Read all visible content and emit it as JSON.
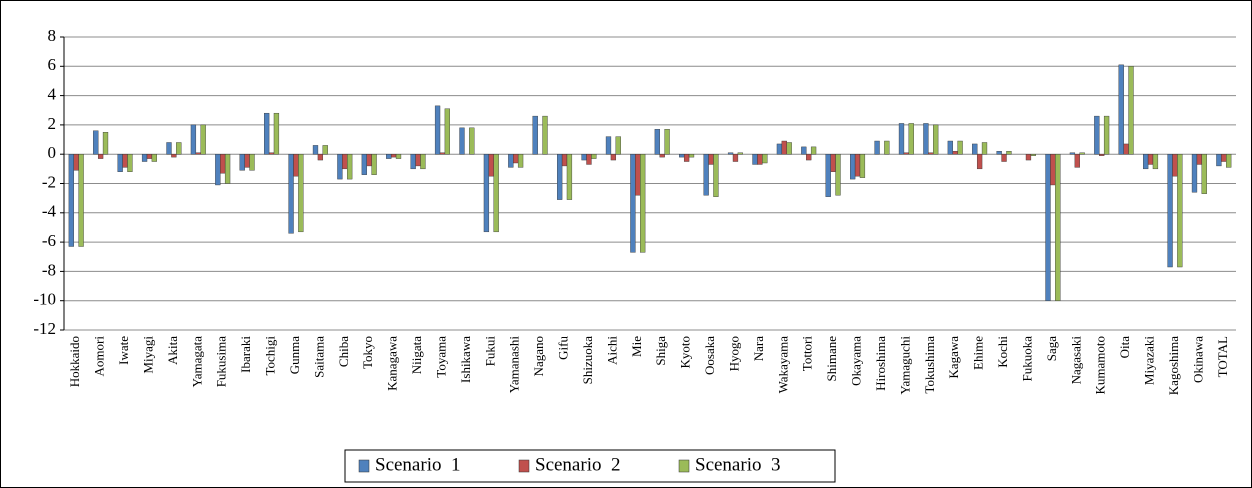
{
  "chart_data": {
    "type": "bar",
    "categories": [
      "Hokkaido",
      "Aomori",
      "Iwate",
      "Miyagi",
      "Akita",
      "Yamagata",
      "Fukusima",
      "Ibaraki",
      "Tochigi",
      "Gunma",
      "Saitama",
      "Chiba",
      "Tokyo",
      "Kanagawa",
      "Niigata",
      "Toyama",
      "Ishikawa",
      "Fukui",
      "Yamanashi",
      "Nagano",
      "Gifu",
      "Shizuoka",
      "Aichi",
      "Mie",
      "Shiga",
      "Kyoto",
      "Oosaka",
      "Hyogo",
      "Nara",
      "Wakayama",
      "Tottori",
      "Shimane",
      "Okayama",
      "Hiroshima",
      "Yamaguchi",
      "Tokushima",
      "Kagawa",
      "Ehime",
      "Kochi",
      "Fukuoka",
      "Saga",
      "Nagasaki",
      "Kumamoto",
      "Oita",
      "Miyazaki",
      "Kagoshima",
      "Okinawa",
      "TOTAL"
    ],
    "series": [
      {
        "name": "Scenario  1",
        "color": "#4f81bd",
        "values": [
          -6.3,
          1.6,
          -1.2,
          -0.5,
          0.8,
          2.0,
          -2.1,
          -1.1,
          2.8,
          -5.4,
          0.6,
          -1.7,
          -1.4,
          -0.3,
          -1.0,
          3.3,
          1.8,
          -5.3,
          -0.9,
          2.6,
          -3.1,
          -0.4,
          1.2,
          -6.7,
          1.7,
          -0.2,
          -2.8,
          0.1,
          -0.7,
          0.7,
          0.5,
          -2.9,
          -1.7,
          0.9,
          2.1,
          2.1,
          0.9,
          0.7,
          0.2,
          0.0,
          -10.0,
          0.1,
          2.6,
          6.1,
          -1.0,
          -7.7,
          -2.6,
          -0.8
        ]
      },
      {
        "name": "Scenario  2",
        "color": "#c0504d",
        "values": [
          -1.1,
          -0.3,
          -0.9,
          -0.3,
          -0.2,
          0.1,
          -1.3,
          -0.9,
          0.1,
          -1.5,
          -0.4,
          -1.0,
          -0.8,
          -0.2,
          -0.8,
          0.1,
          0.0,
          -1.5,
          -0.6,
          0.0,
          -0.8,
          -0.7,
          -0.4,
          -2.8,
          -0.2,
          -0.5,
          -0.7,
          -0.5,
          -0.7,
          0.9,
          -0.4,
          -1.2,
          -1.5,
          0.0,
          0.1,
          0.1,
          0.2,
          -1.0,
          -0.5,
          -0.4,
          -2.1,
          -0.9,
          -0.1,
          0.7,
          -0.7,
          -1.5,
          -0.7,
          -0.5
        ]
      },
      {
        "name": "Scenario  3",
        "color": "#9bbb59",
        "values": [
          -6.3,
          1.5,
          -1.2,
          -0.5,
          0.8,
          2.0,
          -2.0,
          -1.1,
          2.8,
          -5.3,
          0.6,
          -1.7,
          -1.4,
          -0.3,
          -1.0,
          3.1,
          1.8,
          -5.3,
          -0.9,
          2.6,
          -3.1,
          -0.3,
          1.2,
          -6.7,
          1.7,
          -0.2,
          -2.9,
          0.1,
          -0.6,
          0.8,
          0.5,
          -2.8,
          -1.6,
          0.9,
          2.1,
          2.0,
          0.9,
          0.8,
          0.2,
          -0.1,
          -10.0,
          0.1,
          2.6,
          6.0,
          -1.0,
          -7.7,
          -2.7,
          -0.9
        ]
      }
    ],
    "ylim": [
      -12,
      8
    ],
    "yticks": [
      -12,
      -10,
      -8,
      -6,
      -4,
      -2,
      0,
      2,
      4,
      6,
      8
    ],
    "grid": true,
    "legend": "bottom"
  }
}
